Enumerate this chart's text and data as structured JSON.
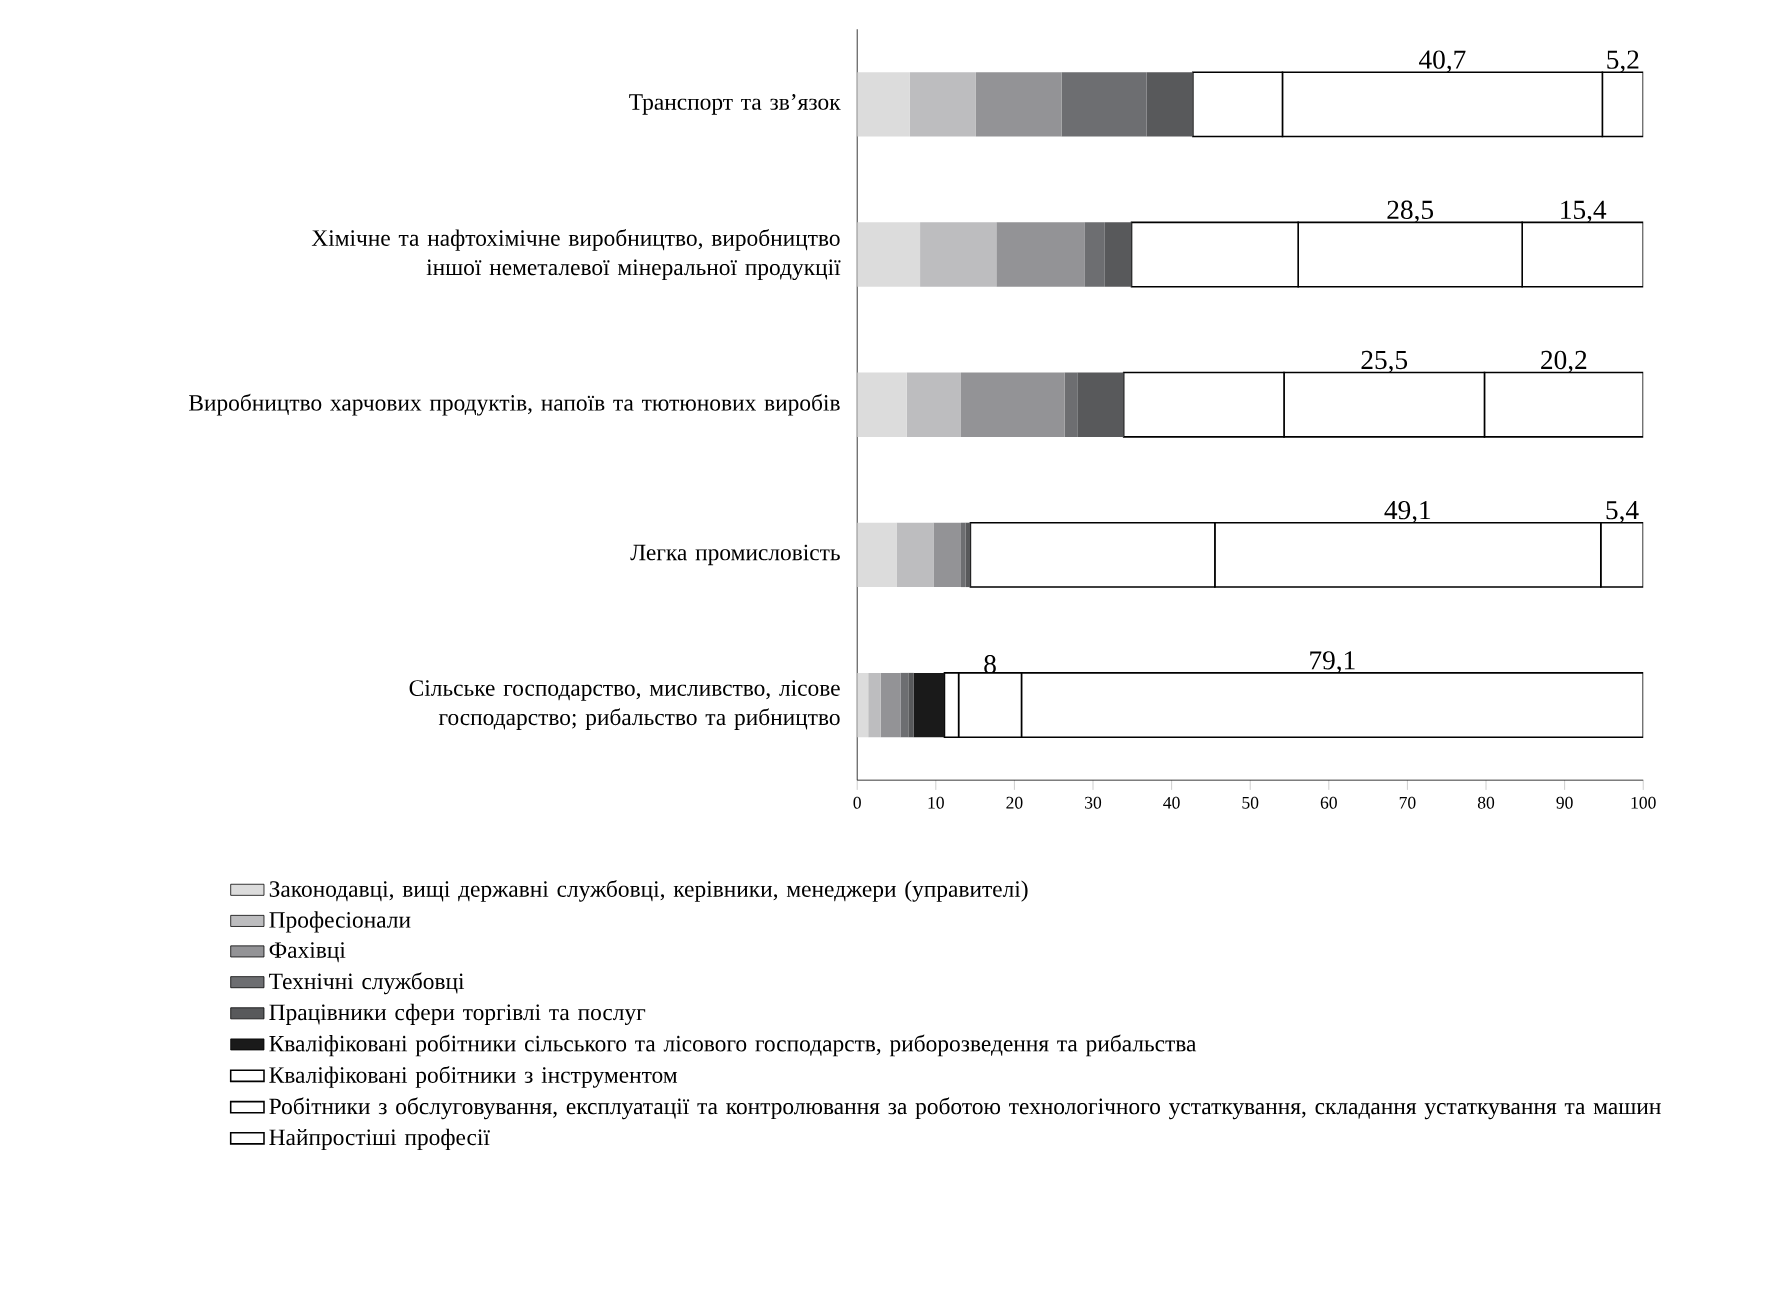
{
  "chart_data": {
    "type": "bar",
    "orientation": "horizontal",
    "stacked": true,
    "categories": [
      "Транспорт та зв’язок",
      "Хімічне та нафтохімічне виробництво, виробництво іншої неметалевої мінеральної продукції",
      "Виробництво харчових продуктів, напоїв та тютюнових виробів",
      "Легка промисловість",
      "Сільське господарство, мисливство, лісове господарство; рибальство та рибництво"
    ],
    "series": [
      {
        "name": "Законодавці, вищі державні службовці, керівники, менеджери (управителі)",
        "color": "#dcdcdc",
        "values": [
          6.7,
          8.0,
          6.3,
          5.0,
          1.4
        ]
      },
      {
        "name": "Професіонали",
        "color": "#bdbdbf",
        "values": [
          8.4,
          9.7,
          6.9,
          4.7,
          1.6
        ]
      },
      {
        "name": "Фахівці",
        "color": "#939396",
        "values": [
          10.9,
          11.2,
          13.2,
          3.5,
          2.5
        ]
      },
      {
        "name": "Технічні службовці",
        "color": "#6d6e71",
        "values": [
          10.8,
          2.6,
          1.6,
          0.6,
          1.0
        ]
      },
      {
        "name": "Працівники сфери торгівлі та послуг",
        "color": "#58595b",
        "values": [
          5.9,
          3.4,
          5.9,
          0.6,
          0.7
        ]
      },
      {
        "name": "Кваліфіковані робітники сільського та лісового господарств, риборозведення та рибальства",
        "color": "#1a1a1a",
        "values": [
          0,
          0,
          0,
          0,
          3.9
        ]
      },
      {
        "name": "Кваліфіковані робітники з інструментом",
        "color": "#ffffff",
        "values": [
          11.4,
          21.2,
          20.4,
          31.1,
          1.8
        ]
      },
      {
        "name": "Робітники з обслуговування, експлуатації та контролювання за роботою технологічного устаткування, складання устаткування та машин",
        "color": "#ffffff",
        "values": [
          40.7,
          28.5,
          25.5,
          49.1,
          8
        ],
        "value_labels": [
          "40,7",
          "28,5",
          "25,5",
          "49,1",
          "8"
        ]
      },
      {
        "name": "Найпростіші професії",
        "color": "#ffffff",
        "values": [
          5.2,
          15.4,
          20.2,
          5.4,
          79.1
        ],
        "value_labels": [
          "5,2",
          "15,4",
          "20,2",
          "5,4",
          "79,1"
        ]
      }
    ],
    "xlim": [
      0,
      100
    ],
    "xticks": [
      0,
      10,
      20,
      30,
      40,
      50,
      60,
      70,
      80,
      90,
      100
    ],
    "legend": "bottom"
  }
}
